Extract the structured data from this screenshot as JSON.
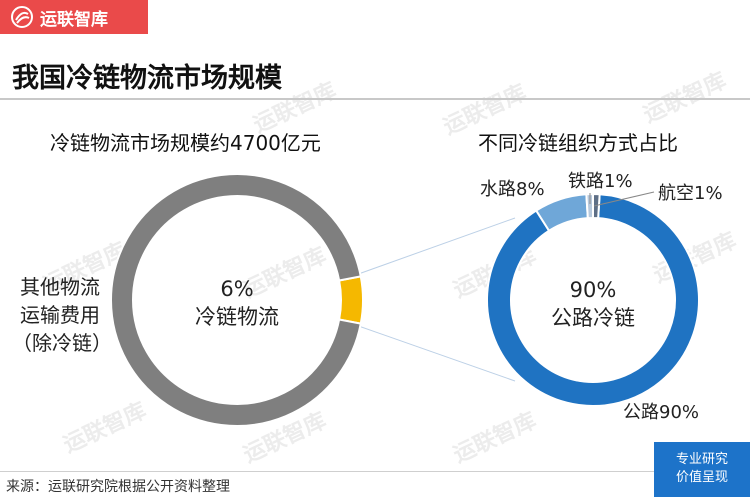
{
  "brand": {
    "name": "运联智库",
    "accent": "#ea4a4a"
  },
  "page_title": "我国冷链物流市场规模",
  "source": "来源：运联研究院根据公开资料整理",
  "tag": {
    "line1": "专业研究",
    "line2": "价值呈现",
    "color": "#1d73c9"
  },
  "watermark": "运联智库",
  "chart_data": [
    {
      "type": "pie",
      "title": "冷链物流市场规模约4700亿元",
      "slices": [
        {
          "name": "冷链物流",
          "value": 6,
          "color": "#f5b800"
        },
        {
          "name": "其他物流运输费用（除冷链）",
          "value": 94,
          "color": "#7f7f7f"
        }
      ],
      "center_label": {
        "value": "6%",
        "name": "冷链物流"
      },
      "outer_label": {
        "line1": "其他物流",
        "line2": "运输费用",
        "line3": "（除冷链）"
      }
    },
    {
      "type": "pie",
      "title": "不同冷链组织方式占比",
      "slices": [
        {
          "name": "公路",
          "value": 90,
          "color": "#1f73c2"
        },
        {
          "name": "水路",
          "value": 8,
          "color": "#6fa7d8"
        },
        {
          "name": "铁路",
          "value": 1,
          "color": "#b7c9dd"
        },
        {
          "name": "航空",
          "value": 1,
          "color": "#5e6f86"
        }
      ],
      "slice_labels": [
        "公路90%",
        "水路8%",
        "铁路1%",
        "航空1%"
      ],
      "center_label": {
        "value": "90%",
        "name": "公路冷链"
      }
    }
  ]
}
